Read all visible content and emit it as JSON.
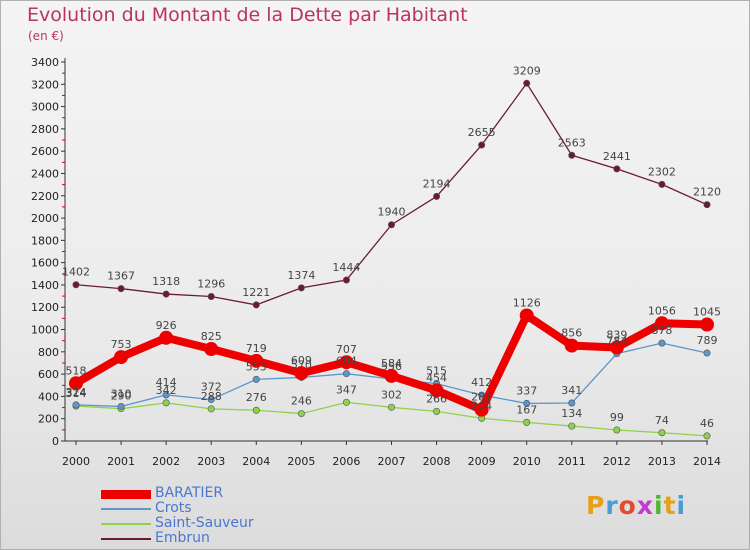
{
  "title": "Evolution du Montant de la Dette par Habitant",
  "unit_label": "(en €)",
  "logo_text": "Proxiti",
  "logo_colors": [
    "#e5a11a",
    "#4a9ad8",
    "#e24b2f",
    "#c13ccf",
    "#4fb82f",
    "#e5a11a",
    "#4a9ad8"
  ],
  "chart_data": {
    "type": "line",
    "title": "Evolution du Montant de la Dette par Habitant",
    "ylabel": "(en €)",
    "xlabel": "",
    "ylim": [
      0,
      3400
    ],
    "yticks": [
      0,
      200,
      400,
      600,
      800,
      1000,
      1200,
      1400,
      1600,
      1800,
      2000,
      2200,
      2400,
      2600,
      2800,
      3000,
      3200,
      3400
    ],
    "categories": [
      "2000",
      "2001",
      "2002",
      "2003",
      "2004",
      "2005",
      "2006",
      "2007",
      "2008",
      "2009",
      "2010",
      "2011",
      "2012",
      "2013",
      "2014"
    ],
    "grid": false,
    "legend_position": "bottom-left",
    "series": [
      {
        "name": "BARATIER",
        "color": "#ee0000",
        "values": [
          518,
          753,
          926,
          825,
          719,
          609,
          707,
          584,
          454,
          281,
          1126,
          856,
          839,
          1056,
          1045
        ],
        "labels": [
          "518",
          "753",
          "926",
          "825",
          "719",
          "609",
          "707",
          "584",
          "454",
          "281",
          "1126",
          "856",
          "839",
          "1056",
          "1045"
        ]
      },
      {
        "name": "Crots",
        "color": "#5b96cc",
        "values": [
          324,
          310,
          414,
          372,
          553,
          570,
          604,
          556,
          515,
          412,
          337,
          341,
          784,
          878,
          789
        ],
        "labels": [
          "324",
          "310",
          "414",
          "372",
          "553",
          "570",
          "604",
          "556",
          "515",
          "412",
          "337",
          "341",
          "784",
          "878",
          "789"
        ]
      },
      {
        "name": "Saint-Sauveur",
        "color": "#8fd24a",
        "values": [
          314,
          290,
          342,
          288,
          276,
          246,
          347,
          302,
          266,
          204,
          167,
          134,
          99,
          74,
          46
        ],
        "labels": [
          "314",
          "290",
          "342",
          "288",
          "276",
          "246",
          "347",
          "302",
          "266",
          "204",
          "167",
          "134",
          "99",
          "74",
          "46"
        ]
      },
      {
        "name": "Embrun",
        "color": "#6b1c2c",
        "values": [
          1402,
          1367,
          1318,
          1296,
          1221,
          1374,
          1444,
          1940,
          2194,
          2655,
          3209,
          2563,
          2441,
          2302,
          2120
        ],
        "labels": [
          "1402",
          "1367",
          "1318",
          "1296",
          "1221",
          "1374",
          "1444",
          "1940",
          "2194",
          "2655",
          "3209",
          "2563",
          "2441",
          "2302",
          "2120"
        ]
      }
    ]
  }
}
